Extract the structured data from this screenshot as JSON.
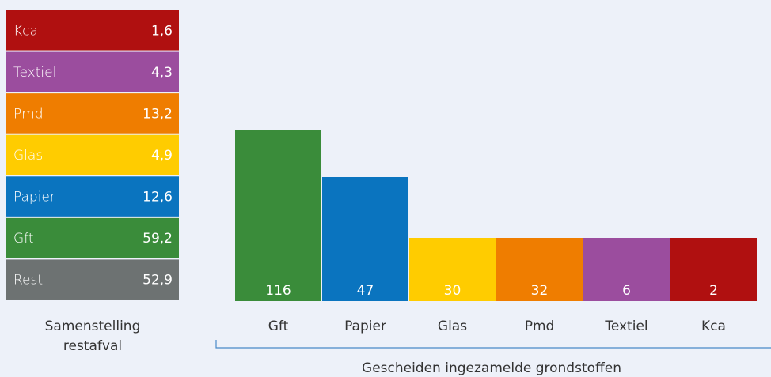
{
  "left": {
    "items": [
      {
        "label": "Kca",
        "value": "1,6"
      },
      {
        "label": "Textiel",
        "value": "4,3"
      },
      {
        "label": "Pmd",
        "value": "13,2"
      },
      {
        "label": "Glas",
        "value": "4,9"
      },
      {
        "label": "Papier",
        "value": "12,6"
      },
      {
        "label": "Gft",
        "value": "59,2"
      },
      {
        "label": "Rest",
        "value": "52,9"
      }
    ],
    "caption_lines": [
      "Samenstelling",
      "restafval"
    ]
  },
  "right": {
    "bars": [
      {
        "label": "Gft",
        "value": "116"
      },
      {
        "label": "Papier",
        "value": "47"
      },
      {
        "label": "Glas",
        "value": "30"
      },
      {
        "label": "Pmd",
        "value": "32"
      },
      {
        "label": "Textiel",
        "value": "6"
      },
      {
        "label": "Kca",
        "value": "2"
      }
    ],
    "caption": "Gescheiden ingezamelde grondstoffen"
  }
}
